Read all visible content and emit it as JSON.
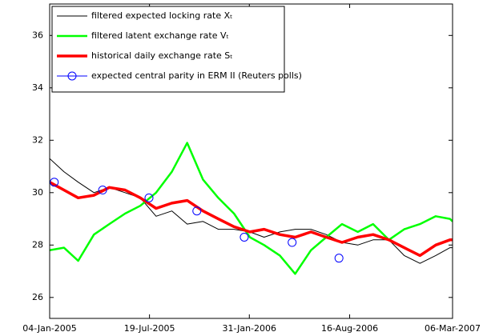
{
  "chart_data": {
    "type": "line",
    "x": [
      "2005-01-04",
      "2005-02-01",
      "2005-03-01",
      "2005-04-01",
      "2005-05-01",
      "2005-06-01",
      "2005-07-01",
      "2005-08-01",
      "2005-09-01",
      "2005-10-01",
      "2005-11-01",
      "2005-12-01",
      "2006-01-01",
      "2006-02-01",
      "2006-03-01",
      "2006-04-01",
      "2006-05-01",
      "2006-06-01",
      "2006-07-01",
      "2006-08-01",
      "2006-09-01",
      "2006-10-01",
      "2006-11-01",
      "2006-12-01",
      "2007-01-01",
      "2007-02-01",
      "2007-03-01",
      "2007-03-06"
    ],
    "series": [
      {
        "name": "filtered expected locking rate Xₜ",
        "color": "#000000",
        "line_width": 1,
        "values": [
          31.3,
          30.8,
          30.4,
          30.0,
          30.2,
          30.0,
          29.8,
          29.1,
          29.3,
          28.8,
          28.9,
          28.6,
          28.6,
          28.5,
          28.3,
          28.5,
          28.6,
          28.6,
          28.4,
          28.1,
          28.0,
          28.2,
          28.2,
          27.6,
          27.3,
          27.6,
          27.9,
          27.9
        ]
      },
      {
        "name": "filtered latent exchange rate Vₜ",
        "color": "#00ff00",
        "line_width": 2.5,
        "values": [
          27.8,
          27.9,
          27.4,
          28.4,
          28.8,
          29.2,
          29.5,
          30.0,
          30.8,
          31.9,
          30.5,
          29.8,
          29.2,
          28.3,
          28.0,
          27.6,
          26.9,
          27.8,
          28.3,
          28.8,
          28.5,
          28.8,
          28.2,
          28.6,
          28.8,
          29.1,
          29.0,
          28.9
        ]
      },
      {
        "name": "historical daily exchange rate Sₜ",
        "color": "#ff0000",
        "line_width": 3.5,
        "values": [
          30.4,
          30.1,
          29.8,
          29.9,
          30.2,
          30.1,
          29.8,
          29.4,
          29.6,
          29.7,
          29.3,
          29.0,
          28.7,
          28.5,
          28.6,
          28.4,
          28.3,
          28.5,
          28.3,
          28.1,
          28.3,
          28.4,
          28.2,
          27.9,
          27.6,
          28.0,
          28.2,
          28.2
        ]
      },
      {
        "name": "expected central parity in ERM II (Reuters polls)",
        "color": "#0000ff",
        "marker": "circle",
        "x": [
          "2005-01-13",
          "2005-04-18",
          "2005-07-18",
          "2005-10-20",
          "2006-01-21",
          "2006-04-25",
          "2006-07-26"
        ],
        "values": [
          30.4,
          30.1,
          29.8,
          29.3,
          28.3,
          28.1,
          27.5
        ]
      }
    ],
    "xlim": [
      "2005-01-04",
      "2007-03-06"
    ],
    "xticks": [
      {
        "value": "2005-01-04",
        "label": "04-Jan-2005"
      },
      {
        "value": "2005-07-19",
        "label": "19-Jul-2005"
      },
      {
        "value": "2006-01-31",
        "label": "31-Jan-2006"
      },
      {
        "value": "2006-08-16",
        "label": "16-Aug-2006"
      },
      {
        "value": "2007-03-06",
        "label": "06-Mar-2007"
      }
    ],
    "ylim": [
      25.2,
      37.2
    ],
    "yticks": [
      26,
      28,
      30,
      32,
      34,
      36
    ],
    "legend": "top-left"
  }
}
